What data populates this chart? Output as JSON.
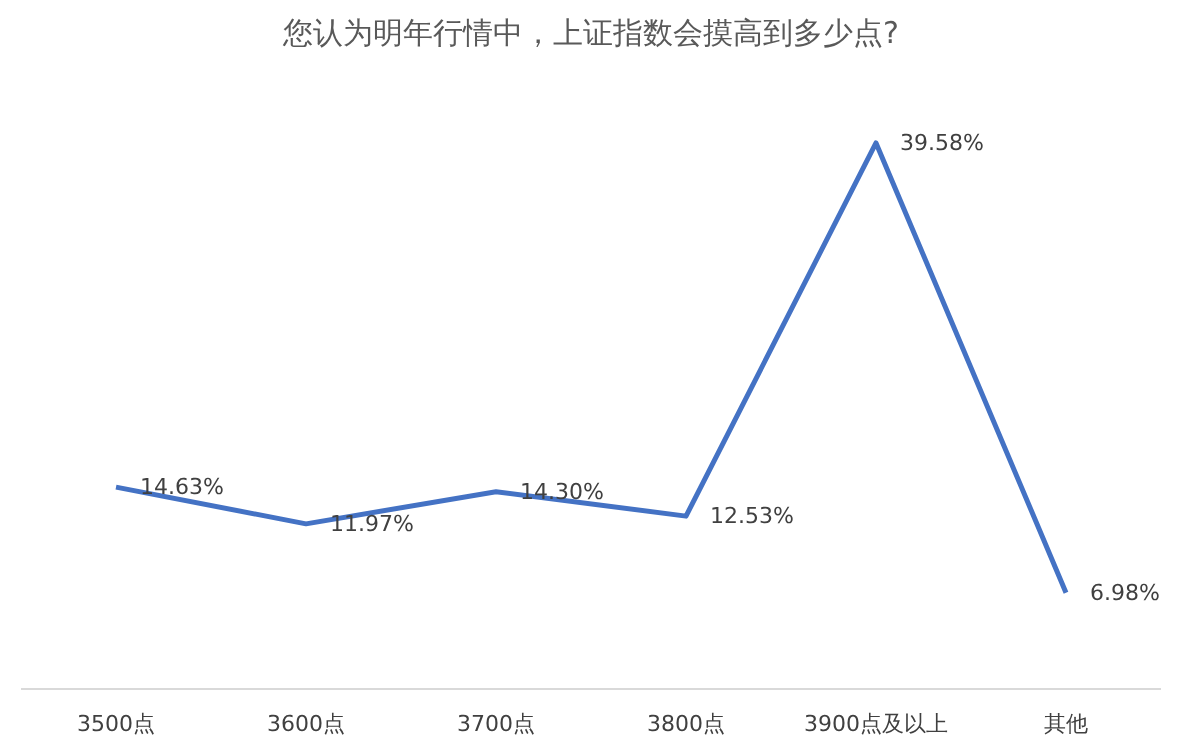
{
  "chart_data": {
    "type": "line",
    "title": "您认为明年行情中，上证指数会摸高到多少点?",
    "categories": [
      "3500点",
      "3600点",
      "3700点",
      "3800点",
      "3900点及以上",
      "其他"
    ],
    "series": [
      {
        "color": "#4472c4",
        "values": [
          14.63,
          11.97,
          14.3,
          12.53,
          39.58,
          6.98
        ],
        "value_labels": [
          "14.63%",
          "11.97%",
          "14.30%",
          "12.53%",
          "39.58%",
          "6.98%"
        ]
      }
    ],
    "grid": false,
    "marker": "none",
    "line_style": "solid"
  }
}
